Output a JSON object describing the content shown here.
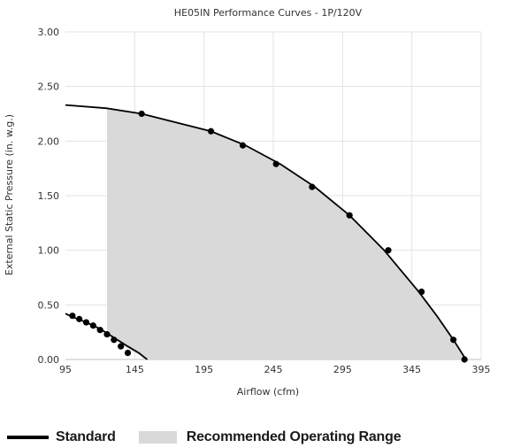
{
  "chart_data": {
    "type": "line",
    "title": "HE05IN Performance Curves - 1P/120V",
    "xlabel": "Airflow (cfm)",
    "ylabel": "External Static Pressure (in. w.g.)",
    "xlim": [
      95,
      395
    ],
    "ylim": [
      0,
      3.0
    ],
    "x_ticks": [
      "95",
      "145",
      "195",
      "245",
      "295",
      "345",
      "395"
    ],
    "y_ticks": [
      "0.00",
      "0.50",
      "1.00",
      "1.50",
      "2.00",
      "2.50",
      "3.00"
    ],
    "grid": true,
    "legend_position": "bottom-left",
    "colors": {
      "line": "#000000",
      "range_fill": "#d9d9d9",
      "grid": "#e3e3e3"
    },
    "series": [
      {
        "name": "Standard",
        "curve": [
          [
            95,
            2.33
          ],
          [
            125,
            2.3
          ],
          [
            150,
            2.25
          ],
          [
            175,
            2.17
          ],
          [
            200,
            2.09
          ],
          [
            225,
            1.96
          ],
          [
            250,
            1.79
          ],
          [
            275,
            1.58
          ],
          [
            300,
            1.32
          ],
          [
            325,
            1.0
          ],
          [
            350,
            0.62
          ],
          [
            363,
            0.4
          ],
          [
            375,
            0.18
          ],
          [
            380,
            0.08
          ],
          [
            384,
            0.0
          ]
        ],
        "points": [
          [
            150,
            2.25
          ],
          [
            200,
            2.09
          ],
          [
            223,
            1.96
          ],
          [
            247,
            1.79
          ],
          [
            273,
            1.58
          ],
          [
            300,
            1.32
          ],
          [
            328,
            1.0
          ],
          [
            352,
            0.62
          ],
          [
            375,
            0.18
          ],
          [
            383,
            0.0
          ]
        ]
      },
      {
        "name": "",
        "curve": [
          [
            95,
            0.42
          ],
          [
            100,
            0.39
          ],
          [
            110,
            0.34
          ],
          [
            120,
            0.28
          ],
          [
            130,
            0.2
          ],
          [
            140,
            0.12
          ],
          [
            148,
            0.06
          ],
          [
            152,
            0.02
          ],
          [
            154,
            0.0
          ]
        ],
        "points": [
          [
            100,
            0.4
          ],
          [
            105,
            0.37
          ],
          [
            110,
            0.34
          ],
          [
            115,
            0.31
          ],
          [
            120,
            0.27
          ],
          [
            125,
            0.23
          ],
          [
            130,
            0.18
          ],
          [
            135,
            0.12
          ],
          [
            140,
            0.06
          ]
        ]
      }
    ],
    "recommended_range": {
      "x_start": 125,
      "upper": [
        [
          125,
          2.3
        ],
        [
          150,
          2.25
        ],
        [
          175,
          2.17
        ],
        [
          200,
          2.09
        ],
        [
          225,
          1.96
        ],
        [
          250,
          1.79
        ],
        [
          275,
          1.58
        ],
        [
          300,
          1.32
        ],
        [
          325,
          1.0
        ],
        [
          350,
          0.62
        ],
        [
          363,
          0.4
        ],
        [
          375,
          0.18
        ],
        [
          380,
          0.08
        ],
        [
          384,
          0.0
        ]
      ],
      "lower": [
        [
          125,
          0.23
        ],
        [
          130,
          0.19
        ],
        [
          140,
          0.1
        ],
        [
          148,
          0.04
        ],
        [
          152,
          0.0
        ]
      ]
    }
  },
  "legend": {
    "standard_label": "Standard",
    "range_label": "Recommended Operating Range"
  }
}
